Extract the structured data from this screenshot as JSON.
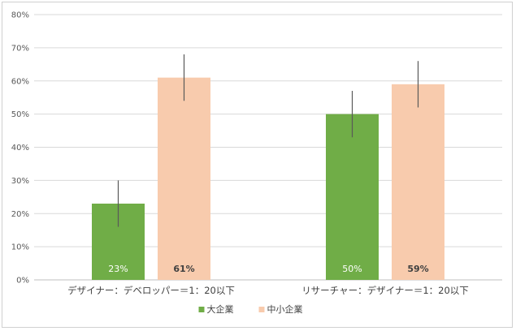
{
  "chart_data": {
    "type": "bar",
    "categories": [
      "デザイナー：デベロッパー＝1：20以下",
      "リサーチャー：デザイナー＝1：20以下"
    ],
    "series": [
      {
        "name": "大企業",
        "color": "#70ad47",
        "values": [
          23,
          50
        ],
        "labels": [
          "23%",
          "50%"
        ],
        "label_color": "#ffffff",
        "error": [
          [
            16,
            30
          ],
          [
            43,
            57
          ]
        ]
      },
      {
        "name": "中小企業",
        "color": "#f8cbad",
        "values": [
          61,
          59
        ],
        "labels": [
          "61%",
          "59%"
        ],
        "label_color": "#404040",
        "error": [
          [
            54,
            68
          ],
          [
            52,
            66
          ]
        ]
      }
    ],
    "ylim": [
      0,
      80
    ],
    "yticks": [
      "0%",
      "10%",
      "20%",
      "30%",
      "40%",
      "50%",
      "60%",
      "70%",
      "80%"
    ],
    "grid": true,
    "legend_position": "bottom",
    "title": "",
    "xlabel": "",
    "ylabel": ""
  }
}
